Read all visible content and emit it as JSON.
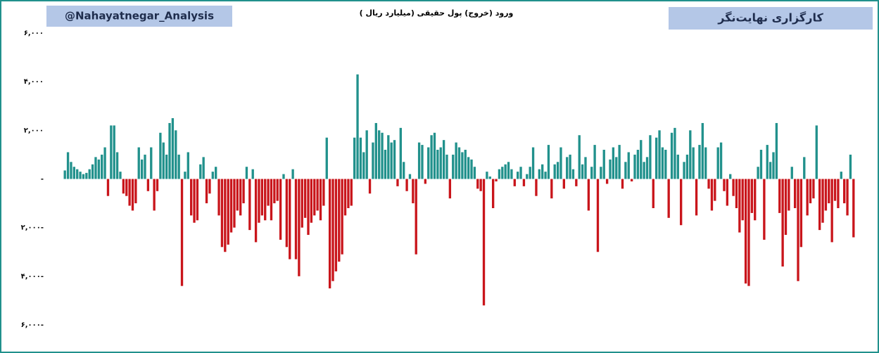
{
  "chart_data": {
    "type": "bar",
    "title": "ورود (خروج) پول حقیقی (میلیارد ریال )",
    "brand_left": "@Nahayatnegar_Analysis",
    "brand_right": "کارگزاری نهایت‌نگر",
    "positive_color": "#21918c",
    "negative_color": "#c9151b",
    "grid": false,
    "ylim": [
      -6000,
      6000
    ],
    "yticks": [
      {
        "value": 6000,
        "label": "۶,۰۰۰"
      },
      {
        "value": 4000,
        "label": "۴,۰۰۰"
      },
      {
        "value": 2000,
        "label": "۲,۰۰۰"
      },
      {
        "value": 0,
        "label": "-"
      },
      {
        "value": -2000,
        "label": "۲,۰۰۰-"
      },
      {
        "value": -4000,
        "label": "۴,۰۰۰-"
      },
      {
        "value": -6000,
        "label": "۶,۰۰۰-"
      }
    ],
    "values": [
      350,
      1100,
      700,
      500,
      400,
      300,
      200,
      250,
      400,
      600,
      900,
      800,
      1000,
      1300,
      -700,
      2200,
      2200,
      1100,
      300,
      -600,
      -700,
      -1100,
      -1300,
      -1000,
      1300,
      800,
      1000,
      -500,
      1300,
      -1300,
      -500,
      1900,
      1500,
      1000,
      2300,
      2500,
      2000,
      1000,
      -4400,
      300,
      1100,
      -1500,
      -1800,
      -1700,
      600,
      900,
      -1000,
      -600,
      300,
      500,
      -1500,
      -2800,
      -3000,
      -2700,
      -2200,
      -2000,
      -1300,
      -1500,
      -1000,
      500,
      -2100,
      400,
      -2600,
      -1800,
      -1500,
      -1700,
      -1100,
      -1700,
      -1000,
      -900,
      -2500,
      200,
      -2800,
      -3300,
      400,
      -3300,
      -4000,
      -2000,
      -1600,
      -2300,
      -1800,
      -1500,
      -1300,
      -1700,
      -1100,
      1700,
      -4500,
      -4200,
      -3800,
      -3400,
      -3100,
      -1500,
      -1200,
      -1100,
      1700,
      4300,
      1700,
      1100,
      2000,
      -600,
      1500,
      2300,
      2000,
      1900,
      1200,
      1800,
      1500,
      1600,
      -300,
      2100,
      700,
      -500,
      200,
      -1000,
      -3100,
      1500,
      1400,
      -200,
      1300,
      1800,
      1900,
      1200,
      1300,
      1600,
      1000,
      -800,
      1000,
      1500,
      1300,
      1100,
      1200,
      900,
      800,
      500,
      -400,
      -500,
      -5200,
      300,
      100,
      -1200,
      -100,
      400,
      500,
      600,
      700,
      400,
      -300,
      300,
      500,
      -300,
      200,
      500,
      1300,
      -700,
      400,
      600,
      300,
      1400,
      -800,
      600,
      700,
      1300,
      -400,
      900,
      1000,
      400,
      -300,
      1800,
      600,
      900,
      -1300,
      500,
      1400,
      -3000,
      500,
      1200,
      -200,
      800,
      1300,
      900,
      1400,
      -400,
      700,
      1100,
      -100,
      1000,
      1200,
      1600,
      700,
      900,
      1800,
      -1200,
      1700,
      2000,
      1300,
      1200,
      -1600,
      1900,
      2100,
      1000,
      -1900,
      700,
      1000,
      2000,
      1300,
      -1500,
      1400,
      2300,
      1300,
      -400,
      -1300,
      -900,
      1300,
      1500,
      -500,
      -1100,
      200,
      -700,
      -1200,
      -2200,
      -1700,
      -4300,
      -4400,
      -1400,
      -1700,
      500,
      1200,
      -2500,
      1400,
      700,
      1100,
      2300,
      -1400,
      -3600,
      -2300,
      -1300,
      500,
      -1200,
      -4200,
      -2800,
      900,
      -1500,
      -1000,
      -800,
      2200,
      -2100,
      -1800,
      -1300,
      -1000,
      -2600,
      -900,
      -1200,
      300,
      -1000,
      -1500,
      1000,
      -2400
    ]
  }
}
